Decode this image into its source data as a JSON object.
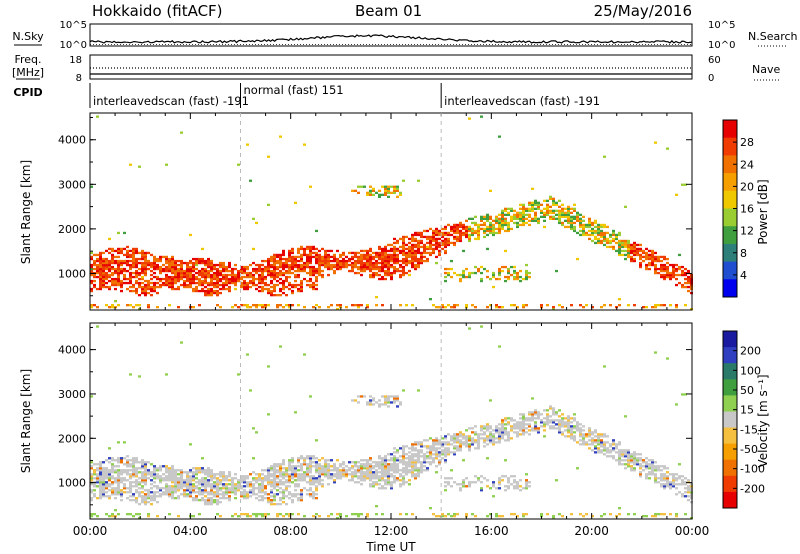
{
  "header": {
    "station": "Hokkaido (fitACF)",
    "beam": "Beam 01",
    "date": "25/May/2016"
  },
  "noise_panel": {
    "left_label": "N.Sky",
    "right_label": "N.Search",
    "left_ticks": [
      "10^5",
      "10^0"
    ],
    "right_ticks": [
      "10^5",
      "10^0"
    ]
  },
  "freq_panel": {
    "left_label_line1": "Freq.",
    "left_label_line2": "[MHz]",
    "right_label": "Nave",
    "left_ticks": [
      "18",
      "8"
    ],
    "right_ticks": [
      "60",
      "0"
    ]
  },
  "cpid_panel": {
    "label": "CPID",
    "segments": [
      {
        "start_hour": 0,
        "end_hour": 6,
        "text": "interleavedscan (fast) -191"
      },
      {
        "start_hour": 6,
        "end_hour": 14,
        "text": "normal (fast) 151"
      },
      {
        "start_hour": 14,
        "end_hour": 24,
        "text": "interleavedscan (fast) -191"
      }
    ]
  },
  "chart_data": [
    {
      "type": "heatmap",
      "title": "",
      "xlabel": "",
      "ylabel": "Slant Range [km]",
      "ylim": [
        180,
        4600
      ],
      "yticks": [
        "1000",
        "2000",
        "3000",
        "4000"
      ],
      "colorbar": {
        "label": "Power [dB]",
        "ticks": [
          "4",
          "8",
          "12",
          "16",
          "20",
          "24",
          "28"
        ],
        "range": [
          0,
          30
        ],
        "colors": [
          "#0000ee",
          "#1f4fd0",
          "#2d7f7a",
          "#3f9f3f",
          "#9acd32",
          "#f0c800",
          "#f5a000",
          "#f07000",
          "#f03c00",
          "#e60000"
        ]
      },
      "bands": [
        {
          "description": "main echo band",
          "hour_start": 0,
          "hour_end": 13.5,
          "range_km": [
            600,
            1500
          ],
          "level": "high"
        },
        {
          "description": "rising arc",
          "hour_start": 13.5,
          "hour_end": 18,
          "range_km": [
            1500,
            2400
          ],
          "level": "medium-high"
        },
        {
          "description": "descending arc",
          "hour_start": 18,
          "hour_end": 24,
          "range_km": [
            700,
            2300
          ],
          "level": "medium-high"
        }
      ]
    },
    {
      "type": "heatmap",
      "title": "",
      "xlabel": "Time UT",
      "ylabel": "Slant Range [km]",
      "ylim": [
        180,
        4600
      ],
      "yticks": [
        "1000",
        "2000",
        "3000",
        "4000"
      ],
      "xticks": [
        "00:00",
        "04:00",
        "08:00",
        "12:00",
        "16:00",
        "20:00",
        "00:00"
      ],
      "colorbar": {
        "label": "Velocity [m s⁻¹]",
        "ticks": [
          "200",
          "100",
          "50",
          "15",
          "-15",
          "-50",
          "-100",
          "-200"
        ],
        "colors": [
          "#1a1aa0",
          "#2f3fbf",
          "#2a7a6a",
          "#3f9f3f",
          "#8fd050",
          "#c8c8c8",
          "#f5c040",
          "#f5a000",
          "#f07000",
          "#f03c00",
          "#e60000"
        ]
      }
    }
  ]
}
